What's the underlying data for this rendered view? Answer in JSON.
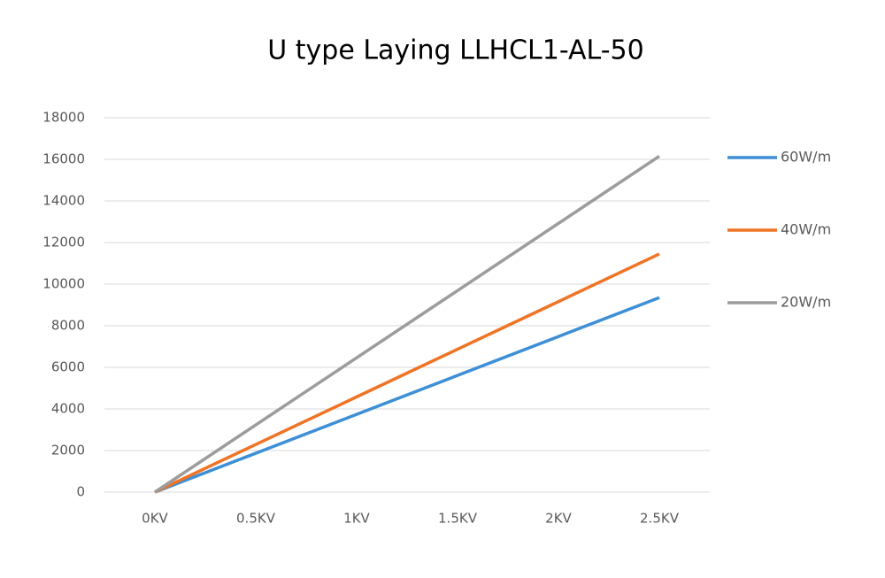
{
  "chart_data": {
    "type": "line",
    "title": "U type Laying LLHCL1-AL-50",
    "categories": [
      "0KV",
      "0.5KV",
      "1KV",
      "1.5KV",
      "2KV",
      "2.5KV"
    ],
    "series": [
      {
        "name": "60W/m",
        "color": "#3d8fd6",
        "values": [
          0,
          1870,
          3740,
          5610,
          7480,
          9350
        ]
      },
      {
        "name": "40W/m",
        "color": "#ef7426",
        "values": [
          0,
          2290,
          4580,
          6870,
          9160,
          11450
        ]
      },
      {
        "name": "20W/m",
        "color": "#9c9c9c",
        "values": [
          0,
          3230,
          6460,
          9690,
          12920,
          16150
        ]
      }
    ],
    "ylim": [
      0,
      18000
    ],
    "yticks": [
      0,
      2000,
      4000,
      6000,
      8000,
      10000,
      12000,
      14000,
      16000,
      18000
    ],
    "grid": true,
    "legend": "right"
  }
}
